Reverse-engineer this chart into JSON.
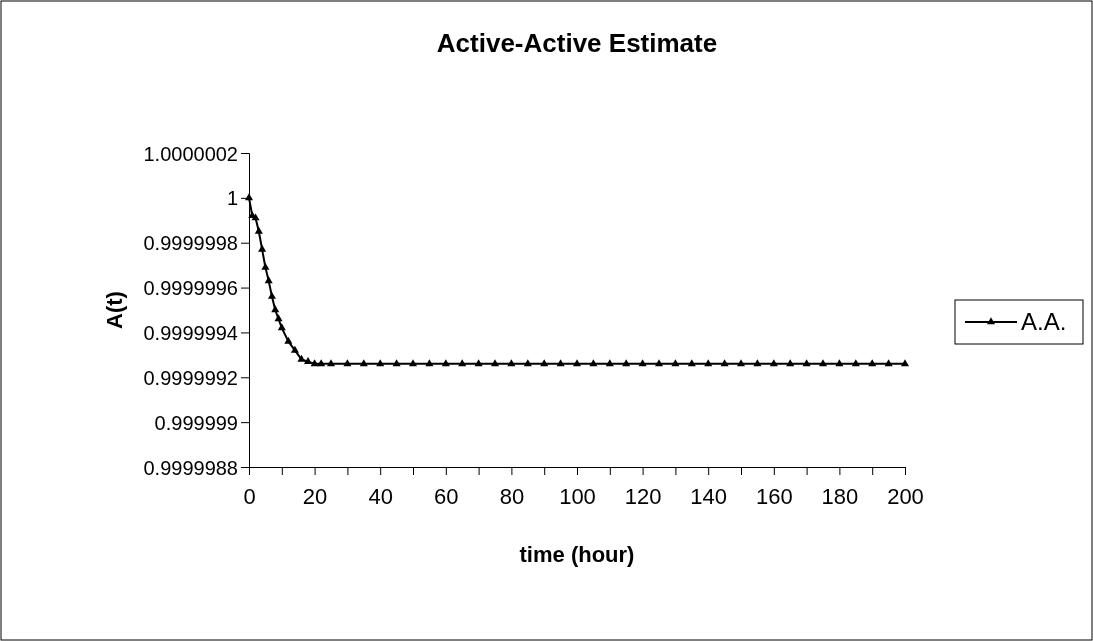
{
  "chart_data": {
    "type": "line",
    "title": "Active-Active Estimate",
    "xlabel": "time (hour)",
    "ylabel": "A(t)",
    "x": [
      0,
      1,
      2,
      3,
      4,
      5,
      6,
      7,
      8,
      9,
      10,
      12,
      14,
      16,
      18,
      20,
      22,
      25,
      30,
      35,
      40,
      45,
      50,
      55,
      60,
      65,
      70,
      75,
      80,
      85,
      90,
      95,
      100,
      105,
      110,
      115,
      120,
      125,
      130,
      135,
      140,
      145,
      150,
      155,
      160,
      165,
      170,
      175,
      180,
      185,
      190,
      195,
      200
    ],
    "series": [
      {
        "name": "A.A.",
        "color": "#000000",
        "values": [
          1,
          0.99999992,
          0.99999991,
          0.99999985,
          0.99999977,
          0.99999969,
          0.99999963,
          0.99999956,
          0.9999995,
          0.99999946,
          0.99999942,
          0.99999936,
          0.99999932,
          0.99999928,
          0.99999927,
          0.99999926,
          0.99999926,
          0.99999926,
          0.99999926,
          0.99999926,
          0.99999926,
          0.99999926,
          0.99999926,
          0.99999926,
          0.99999926,
          0.99999926,
          0.99999926,
          0.99999926,
          0.99999926,
          0.99999926,
          0.99999926,
          0.99999926,
          0.99999926,
          0.99999926,
          0.99999926,
          0.99999926,
          0.99999926,
          0.99999926,
          0.99999926,
          0.99999926,
          0.99999926,
          0.99999926,
          0.99999926,
          0.99999926,
          0.99999926,
          0.99999926,
          0.99999926,
          0.99999926,
          0.99999926,
          0.99999926,
          0.99999926,
          0.99999926,
          0.99999926
        ]
      }
    ],
    "xlim": [
      0,
      200
    ],
    "xticks": [
      0,
      {
        "value": 10,
        "label": null
      },
      20,
      {
        "value": 30,
        "label": null
      },
      40,
      {
        "value": 50,
        "label": null
      },
      60,
      {
        "value": 70,
        "label": null
      },
      80,
      {
        "value": 90,
        "label": null
      },
      100,
      {
        "value": 110,
        "label": null
      },
      120,
      {
        "value": 130,
        "label": null
      },
      140,
      {
        "value": 150,
        "label": null
      },
      160,
      {
        "value": 170,
        "label": null
      },
      180,
      {
        "value": 190,
        "label": null
      },
      200
    ],
    "ylim": [
      0.9999988,
      1.0000002
    ],
    "yticks": [
      0.9999988,
      0.999999,
      0.9999992,
      0.9999994,
      0.9999996,
      0.9999998,
      1,
      1.0000002
    ],
    "marker": "triangle",
    "line_style": "solid",
    "legend": "right",
    "grid": false
  }
}
